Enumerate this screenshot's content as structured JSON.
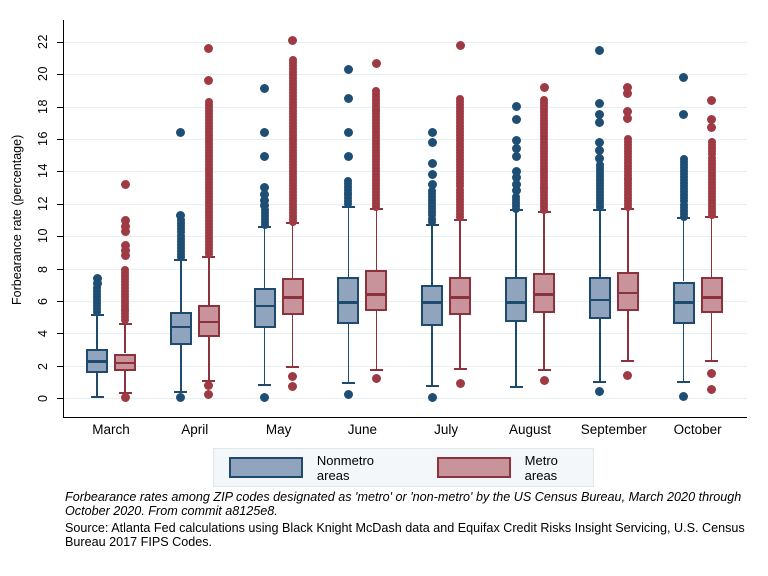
{
  "chart_data": {
    "type": "boxplot",
    "ylabel": "Forbearance rate (percentage)",
    "ylim": [
      0,
      22
    ],
    "yticks": [
      0,
      2,
      4,
      6,
      8,
      10,
      12,
      14,
      16,
      18,
      20,
      22
    ],
    "grid": true,
    "categories": [
      "March",
      "April",
      "May",
      "June",
      "July",
      "August",
      "September",
      "October"
    ],
    "series": [
      {
        "name": "Nonmetro areas",
        "boxes": [
          {
            "low": 0.05,
            "q1": 1.55,
            "median": 2.25,
            "q3": 3.0,
            "high": 5.1,
            "outliers_dense": [
              5.3,
              6.8
            ],
            "outliers": [
              7.1,
              7.4
            ],
            "outliers_low": []
          },
          {
            "low": 0.35,
            "q1": 3.3,
            "median": 4.4,
            "q3": 5.3,
            "high": 8.5,
            "outliers_dense": [
              8.7,
              11.0
            ],
            "outliers": [
              11.3,
              16.4
            ],
            "outliers_low": [
              0.05
            ]
          },
          {
            "low": 0.8,
            "q1": 4.3,
            "median": 5.7,
            "q3": 6.8,
            "high": 10.55,
            "outliers_dense": [
              10.7,
              11.6
            ],
            "outliers": [
              11.9,
              12.2,
              12.6,
              13.0,
              14.9,
              16.4,
              19.1
            ],
            "outliers_low": [
              0.05
            ]
          },
          {
            "low": 0.9,
            "q1": 4.6,
            "median": 5.9,
            "q3": 7.5,
            "high": 11.8,
            "outliers_dense": [
              12.0,
              13.4
            ],
            "outliers": [
              14.9,
              16.4,
              18.5,
              20.3
            ],
            "outliers_low": [
              0.2
            ]
          },
          {
            "low": 0.75,
            "q1": 4.45,
            "median": 5.9,
            "q3": 7.0,
            "high": 10.7,
            "outliers_dense": [
              10.9,
              12.8
            ],
            "outliers": [
              13.2,
              13.8,
              14.5,
              15.8,
              16.4
            ],
            "outliers_low": [
              0.05
            ]
          },
          {
            "low": 0.7,
            "q1": 4.7,
            "median": 5.9,
            "q3": 7.5,
            "high": 11.6,
            "outliers_dense": [
              11.7,
              12.4
            ],
            "outliers": [
              12.8,
              13.2,
              13.6,
              14.0,
              14.9,
              15.4,
              15.9,
              17.2,
              18.0
            ],
            "outliers_low": []
          },
          {
            "low": 1.0,
            "q1": 4.9,
            "median": 6.05,
            "q3": 7.5,
            "high": 11.6,
            "outliers_dense": [
              11.8,
              14.4
            ],
            "outliers": [
              14.8,
              15.3,
              15.8,
              17.0,
              17.5,
              18.2,
              21.5
            ],
            "outliers_low": [
              0.4
            ]
          },
          {
            "low": 1.0,
            "q1": 4.6,
            "median": 5.9,
            "q3": 7.2,
            "high": 11.1,
            "outliers_dense": [
              11.2,
              14.8
            ],
            "outliers": [
              17.5,
              19.8
            ],
            "outliers_low": [
              0.1
            ]
          }
        ]
      },
      {
        "name": "Metro areas",
        "boxes": [
          {
            "low": 0.3,
            "q1": 1.65,
            "median": 2.15,
            "q3": 2.75,
            "high": 4.6,
            "outliers_dense": [
              4.8,
              7.9
            ],
            "outliers": [
              8.8,
              9.1,
              9.4,
              10.3,
              10.6,
              11.0,
              13.2
            ],
            "outliers_low": [
              0.02
            ]
          },
          {
            "low": 1.05,
            "q1": 3.8,
            "median": 4.7,
            "q3": 5.75,
            "high": 8.7,
            "outliers_dense": [
              8.9,
              18.3
            ],
            "outliers": [
              19.6,
              21.6
            ],
            "outliers_low": [
              0.2,
              0.8
            ]
          },
          {
            "low": 1.9,
            "q1": 5.1,
            "median": 6.2,
            "q3": 7.4,
            "high": 10.8,
            "outliers_dense": [
              10.9,
              20.9
            ],
            "outliers": [
              22.1
            ],
            "outliers_low": [
              0.7,
              1.3
            ]
          },
          {
            "low": 1.7,
            "q1": 5.4,
            "median": 6.4,
            "q3": 7.9,
            "high": 11.7,
            "outliers_dense": [
              11.8,
              19.0
            ],
            "outliers": [
              20.7
            ],
            "outliers_low": [
              1.2
            ]
          },
          {
            "low": 1.8,
            "q1": 5.1,
            "median": 6.2,
            "q3": 7.45,
            "high": 11.0,
            "outliers_dense": [
              11.2,
              18.5
            ],
            "outliers": [
              21.8
            ],
            "outliers_low": [
              0.9
            ]
          },
          {
            "low": 1.7,
            "q1": 5.25,
            "median": 6.4,
            "q3": 7.7,
            "high": 11.5,
            "outliers_dense": [
              11.6,
              18.4
            ],
            "outliers": [
              19.2
            ],
            "outliers_low": [
              1.1
            ]
          },
          {
            "low": 2.3,
            "q1": 5.4,
            "median": 6.5,
            "q3": 7.8,
            "high": 11.7,
            "outliers_dense": [
              11.8,
              16.0
            ],
            "outliers": [
              17.3,
              17.7,
              18.8,
              19.2
            ],
            "outliers_low": [
              1.4
            ]
          },
          {
            "low": 2.3,
            "q1": 5.25,
            "median": 6.2,
            "q3": 7.5,
            "high": 11.2,
            "outliers_dense": [
              11.3,
              15.8
            ],
            "outliers": [
              16.7,
              17.2,
              18.4
            ],
            "outliers_low": [
              0.5,
              1.5
            ]
          }
        ]
      }
    ],
    "legend": {
      "position": "bottom",
      "items": [
        {
          "label": "Nonmetro areas"
        },
        {
          "label": "Metro areas"
        }
      ]
    }
  },
  "colors": {
    "nonmetro_fill": "#90a5bd",
    "nonmetro_stroke": "#1e4a6d",
    "nonmetro_dot": "#1f4e74",
    "metro_fill": "#c8939b",
    "metro_stroke": "#8c323c",
    "metro_dot": "#9e3a44",
    "gridline": "#e6f0f3",
    "axis": "#000000"
  },
  "caption": {
    "text": "Forbearance rates among ZIP codes designated as 'metro' or 'non-metro' by the US Census Bureau, March 2020 through October 2020. From commit a8125e8."
  },
  "source": {
    "text": "Source: Atlanta Fed calculations using Black Knight McDash data and Equifax Credit Risks Insight Servicing, U.S. Census Bureau 2017 FIPS Codes."
  }
}
